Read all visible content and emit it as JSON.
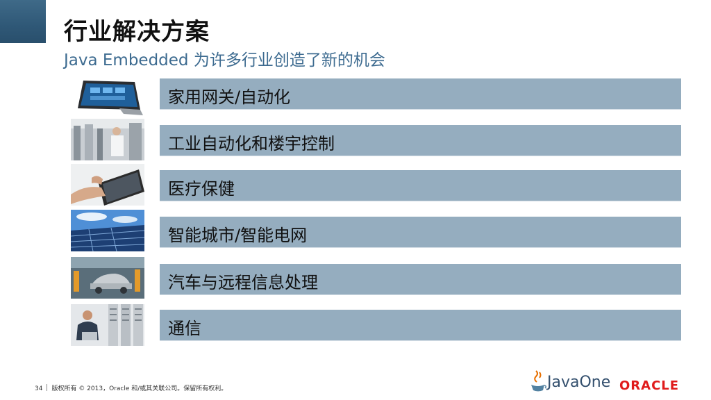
{
  "slide": {
    "title": "行业解决方案",
    "subtitle": "Java Embedded 为许多行业创造了新的机会"
  },
  "industries": [
    {
      "label": "家用网关/自动化"
    },
    {
      "label": "工业自动化和楼宇控制"
    },
    {
      "label": "医疗保健"
    },
    {
      "label": "智能城市/智能电网"
    },
    {
      "label": "汽车与远程信息处理"
    },
    {
      "label": "通信"
    }
  ],
  "footer": {
    "page_number": "34",
    "copyright": "版权所有 © 2013，Oracle 和/或其关联公司。保留所有权利。"
  },
  "logos": {
    "javaone": "JavaOne",
    "oracle": "ORACLE"
  },
  "colors": {
    "bar": "#95adbf",
    "subtitle": "#3d6b90",
    "corner": "#2f5877",
    "oracle_red": "#e01b1b"
  }
}
